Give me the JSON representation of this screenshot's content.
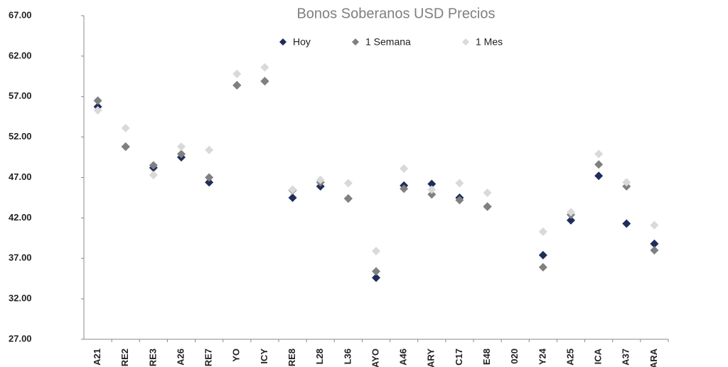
{
  "chart_data": {
    "type": "scatter",
    "title": "Bonos Soberanos USD Precios",
    "categories": [
      "A21",
      "RE2",
      "RE3",
      "A26",
      "RE7",
      "YO",
      "ICY",
      "RE8",
      "L28",
      "L36",
      "AYO",
      "A46",
      "ARY",
      "C17",
      "E48",
      "020",
      "Y24",
      "A25",
      "ICA",
      "A37",
      "ARA"
    ],
    "series": [
      {
        "name": "Hoy",
        "color": "#1f2d5c",
        "values": [
          55.75,
          50.8,
          48.2,
          49.5,
          46.4,
          58.4,
          58.9,
          44.5,
          45.9,
          44.4,
          34.6,
          46.0,
          46.2,
          44.5,
          43.4,
          null,
          37.4,
          41.7,
          47.2,
          41.3,
          38.8
        ]
      },
      {
        "name": "1 Semana",
        "color": "#808080",
        "values": [
          56.5,
          50.8,
          48.5,
          49.9,
          47.0,
          58.4,
          58.9,
          45.4,
          46.4,
          44.4,
          35.4,
          45.6,
          44.9,
          44.2,
          43.4,
          null,
          35.9,
          42.4,
          48.6,
          45.9,
          38.0
        ]
      },
      {
        "name": "1 Mes",
        "color": "#d9d9d9",
        "values": [
          55.3,
          53.1,
          47.3,
          50.8,
          50.4,
          59.8,
          60.6,
          45.5,
          46.7,
          46.3,
          37.9,
          48.1,
          45.5,
          46.3,
          45.1,
          null,
          40.3,
          42.7,
          49.9,
          46.4,
          41.1
        ]
      }
    ],
    "ylim": [
      27,
      67
    ],
    "yticks": [
      {
        "value": 27,
        "label": "27.00"
      },
      {
        "value": 32,
        "label": "32.00"
      },
      {
        "value": 37,
        "label": "37.00"
      },
      {
        "value": 42,
        "label": "42.00"
      },
      {
        "value": 47,
        "label": "47.00"
      },
      {
        "value": 52,
        "label": "52.00"
      },
      {
        "value": 57,
        "label": "57.00"
      },
      {
        "value": 62,
        "label": "62.00"
      },
      {
        "value": 67,
        "label": "67.00"
      }
    ],
    "grid": false
  }
}
